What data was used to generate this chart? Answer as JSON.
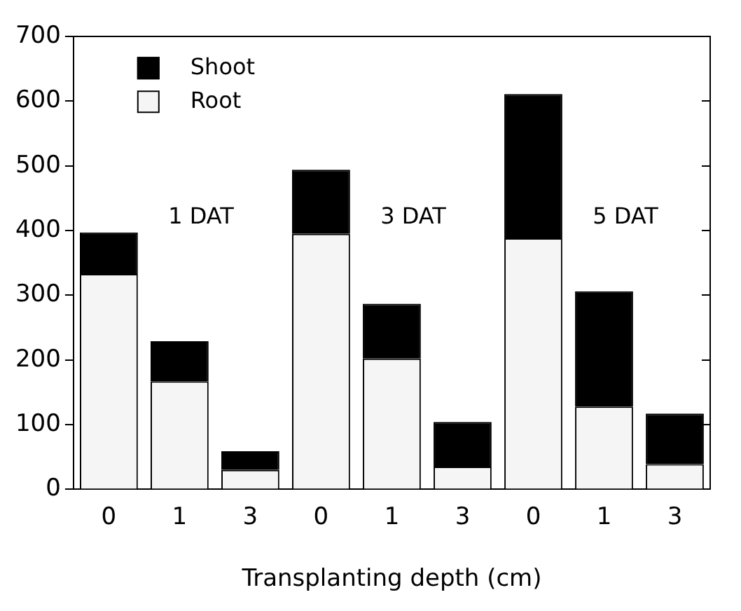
{
  "chart_data": {
    "type": "bar",
    "stacked": true,
    "xlabel": "Transplanting depth (cm)",
    "categories": [
      "0",
      "1",
      "3",
      "0",
      "1",
      "3",
      "0",
      "1",
      "3"
    ],
    "series": [
      {
        "name": "Root",
        "color": "#f5f5f5",
        "values": [
          333,
          167,
          30,
          395,
          202,
          35,
          388,
          128,
          39
        ]
      },
      {
        "name": "Shoot",
        "color": "#000000",
        "values": [
          64,
          62,
          29,
          99,
          85,
          69,
          223,
          178,
          78
        ]
      }
    ],
    "ylim": [
      0,
      700
    ],
    "yticks": [
      0,
      100,
      200,
      300,
      400,
      500,
      600,
      700
    ],
    "grid": false,
    "legend": "top left",
    "annotations": [
      "1 DAT",
      "3 DAT",
      "5 DAT"
    ]
  }
}
